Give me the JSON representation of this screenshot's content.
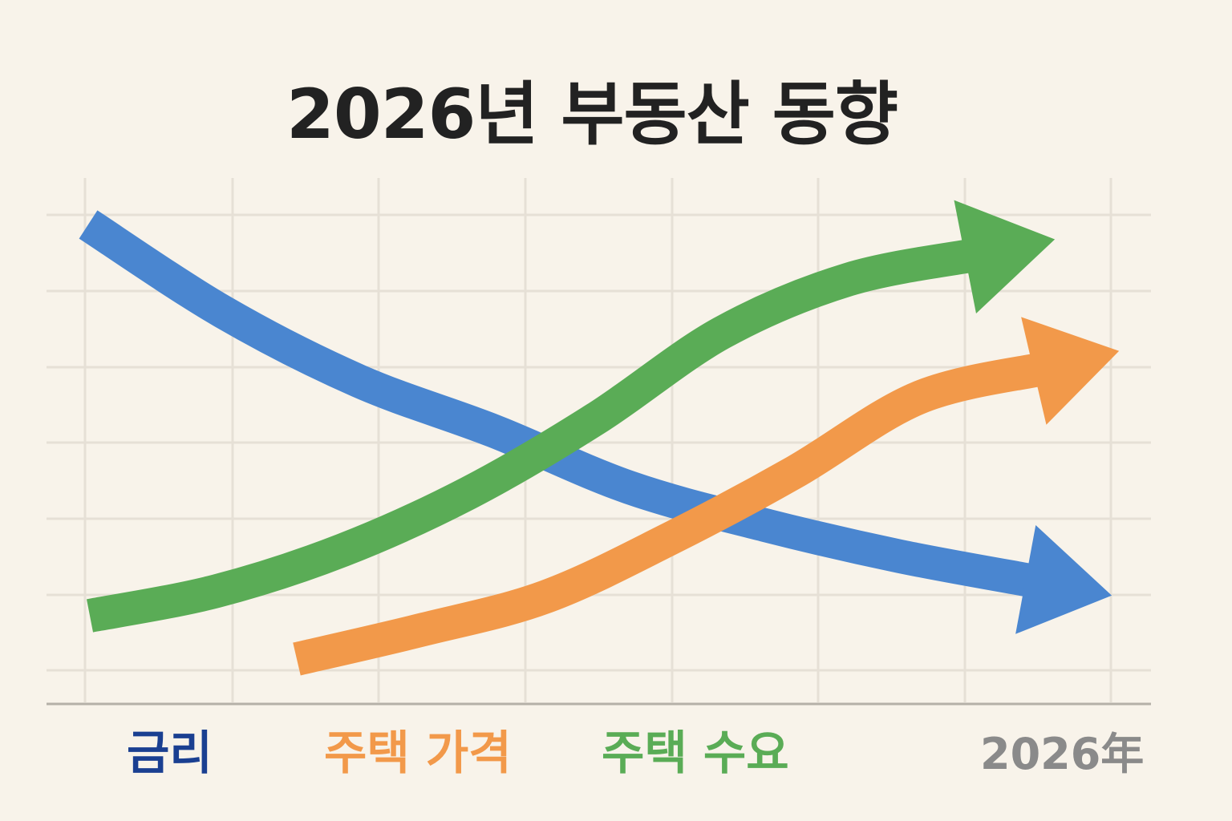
{
  "chart_data": {
    "type": "line",
    "title": "2026년 부동산 동향",
    "xlabel": "",
    "ylabel": "",
    "x_tick_label": "2026年",
    "grid": true,
    "legend_placement": "bottom",
    "series": [
      {
        "name": "금리",
        "color": "#4a86d0",
        "label_color": "#1a3f91",
        "trend": "down",
        "values": [
          8.1,
          6.7,
          5.6,
          4.8,
          3.9,
          3.3,
          2.8,
          2.4
        ]
      },
      {
        "name": "주택 가격",
        "color": "#f2994a",
        "label_color": "#f2994a",
        "trend": "up",
        "values": [
          null,
          0.5,
          1.2,
          2.0,
          3.4,
          5.0,
          6.8,
          7.5
        ]
      },
      {
        "name": "주택 수요",
        "color": "#5aac56",
        "label_color": "#5aac56",
        "trend": "up",
        "values": [
          1.2,
          1.8,
          2.8,
          4.2,
          6.0,
          8.1,
          9.4,
          10.0
        ]
      }
    ],
    "colors": {
      "background": "#f8f3ea",
      "grid": "#e6e0d6",
      "axis": "#b5b0a8",
      "title": "#222222",
      "tick_label": "#8a8a8a"
    }
  }
}
